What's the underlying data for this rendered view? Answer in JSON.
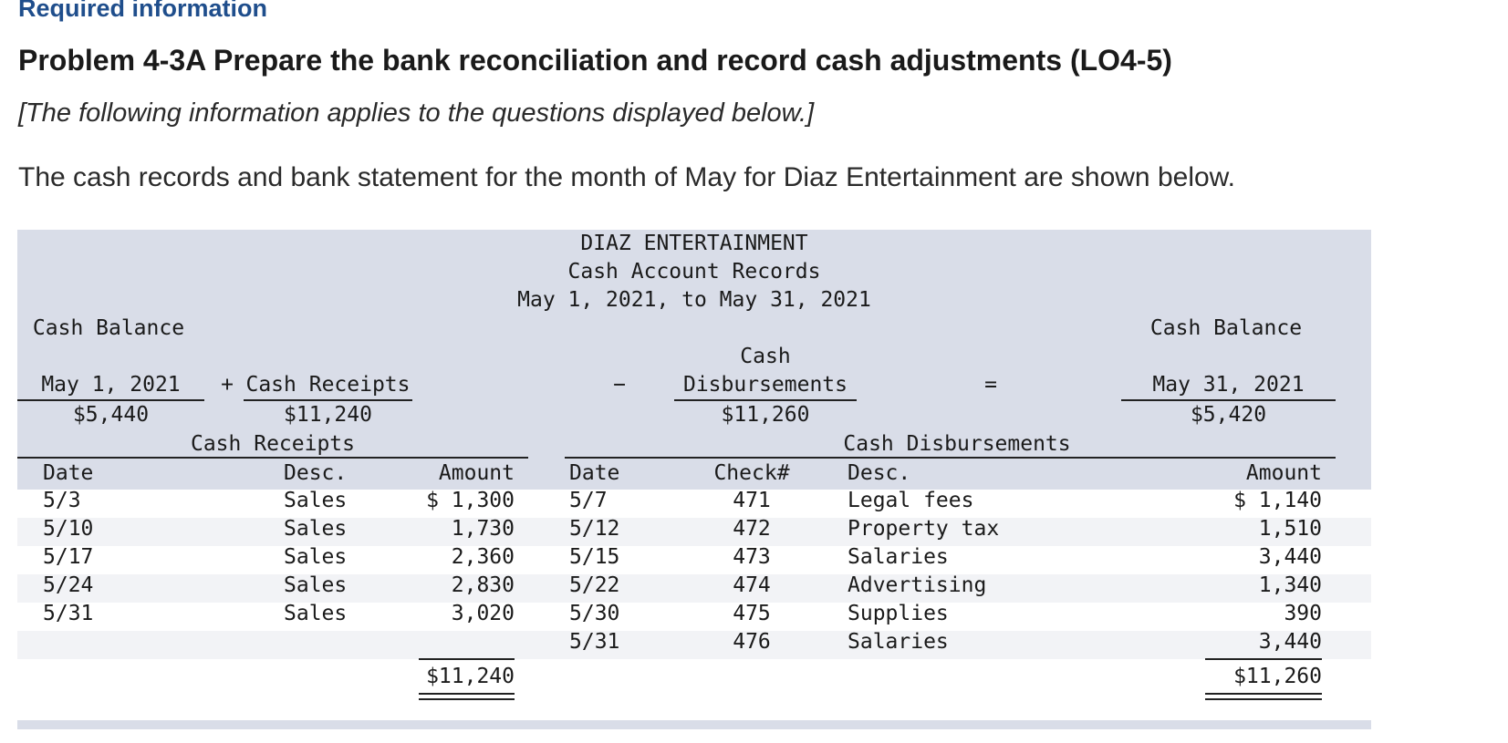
{
  "header": {
    "required": "Required information",
    "title": "Problem 4-3A Prepare the bank reconciliation and record cash adjustments (LO4-5)",
    "intro": "[The following information applies to the questions displayed below.]",
    "description": "The cash records and bank statement for the month of May for Diaz Entertainment are shown below."
  },
  "records": {
    "company": "DIAZ ENTERTAINMENT",
    "subtitle": "Cash Account Records",
    "period": "May 1, 2021, to May 31, 2021",
    "summary": {
      "begin_label": "Cash Balance",
      "begin_date": "May 1, 2021",
      "begin_value": "$5,440",
      "plus": "+",
      "receipts_label": "Cash Receipts",
      "receipts_value": "$11,240",
      "minus": "−",
      "disb_label_1": "Cash",
      "disb_label_2": "Disbursements",
      "disb_value": "$11,260",
      "equals": "=",
      "end_label": "Cash Balance",
      "end_date": "May 31, 2021",
      "end_value": "$5,420"
    },
    "receipts": {
      "title": "Cash Receipts",
      "headers": {
        "date": "Date",
        "desc": "Desc.",
        "amount": "Amount"
      },
      "rows": [
        {
          "date": "5/3",
          "desc": "Sales",
          "amount": "$ 1,300"
        },
        {
          "date": "5/10",
          "desc": "Sales",
          "amount": "1,730"
        },
        {
          "date": "5/17",
          "desc": "Sales",
          "amount": "2,360"
        },
        {
          "date": "5/24",
          "desc": "Sales",
          "amount": "2,830"
        },
        {
          "date": "5/31",
          "desc": "Sales",
          "amount": "3,020"
        }
      ],
      "total": "$11,240"
    },
    "disbursements": {
      "title": "Cash Disbursements",
      "headers": {
        "date": "Date",
        "check": "Check#",
        "desc": "Desc.",
        "amount": "Amount"
      },
      "rows": [
        {
          "date": "5/7",
          "check": "471",
          "desc": "Legal fees",
          "amount": "$ 1,140"
        },
        {
          "date": "5/12",
          "check": "472",
          "desc": "Property tax",
          "amount": "1,510"
        },
        {
          "date": "5/15",
          "check": "473",
          "desc": "Salaries",
          "amount": "3,440"
        },
        {
          "date": "5/22",
          "check": "474",
          "desc": "Advertising",
          "amount": "1,340"
        },
        {
          "date": "5/30",
          "check": "475",
          "desc": "Supplies",
          "amount": "390"
        },
        {
          "date": "5/31",
          "check": "476",
          "desc": "Salaries",
          "amount": "3,440"
        }
      ],
      "total": "$11,260"
    }
  }
}
